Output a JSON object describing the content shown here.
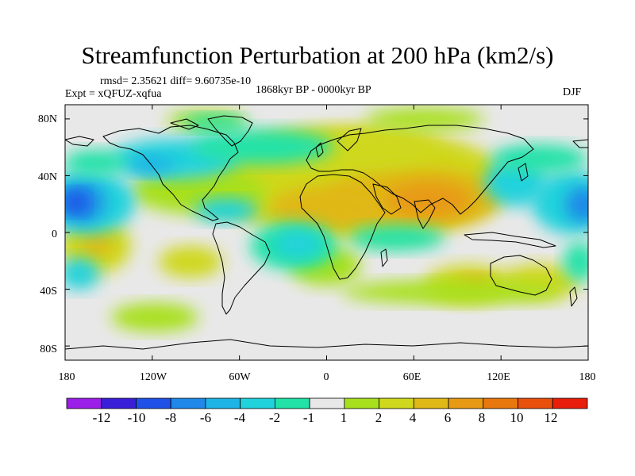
{
  "title": "Streamfunction Perturbation at 200 hPa (km2/s)",
  "stats": "rmsd= 2.35621  diff= 9.60735e-10",
  "experiment": "Expt = xQFUZ-xqfua",
  "period": "1868kyr BP - 0000kyr BP",
  "season": "DJF",
  "chart_data": {
    "type": "map-contour",
    "variable": "Streamfunction perturbation",
    "level": "200 hPa",
    "units": "km2/s",
    "x_ticks": [
      "180",
      "120W",
      "60W",
      "0",
      "60E",
      "120E",
      "180"
    ],
    "y_ticks": [
      "80N",
      "40N",
      "0",
      "40S",
      "80S"
    ],
    "xlim": [
      -180,
      180
    ],
    "ylim": [
      -90,
      90
    ],
    "colorbar_levels": [
      -12,
      -10,
      -8,
      -6,
      -4,
      -2,
      -1,
      1,
      2,
      4,
      6,
      8,
      10,
      12
    ],
    "colorbar_labels": [
      "-12",
      "-10",
      "-8",
      "-6",
      "-4",
      "-2",
      "-1",
      "1",
      "2",
      "4",
      "6",
      "8",
      "10",
      "12"
    ],
    "colorbar_colors": [
      "#9b1fe8",
      "#3a1fd8",
      "#1f50e8",
      "#1f88e8",
      "#1fb4e6",
      "#20d2dc",
      "#22e2a8",
      "#e8e8e8",
      "#a8e01e",
      "#cfd81c",
      "#e0b818",
      "#e89a14",
      "#e8780e",
      "#e8500c",
      "#e81e0a"
    ],
    "features": [
      {
        "lon": -170,
        "lat": 24,
        "value": -9
      },
      {
        "lon": 180,
        "lat": 18,
        "value": -8
      },
      {
        "lon": 135,
        "lat": 28,
        "value": -6
      },
      {
        "lon": -115,
        "lat": 40,
        "value": -4
      },
      {
        "lon": 70,
        "lat": 25,
        "value": 8
      },
      {
        "lon": 15,
        "lat": 18,
        "value": 6
      },
      {
        "lon": -155,
        "lat": -10,
        "value": 5
      },
      {
        "lon": -42,
        "lat": -10,
        "value": -3
      },
      {
        "lon": 60,
        "lat": -30,
        "value": 3
      },
      {
        "lon": 118,
        "lat": -30,
        "value": 4
      },
      {
        "lon": -30,
        "lat": 55,
        "value": -2
      },
      {
        "lon": 85,
        "lat": 65,
        "value": 2
      }
    ]
  }
}
